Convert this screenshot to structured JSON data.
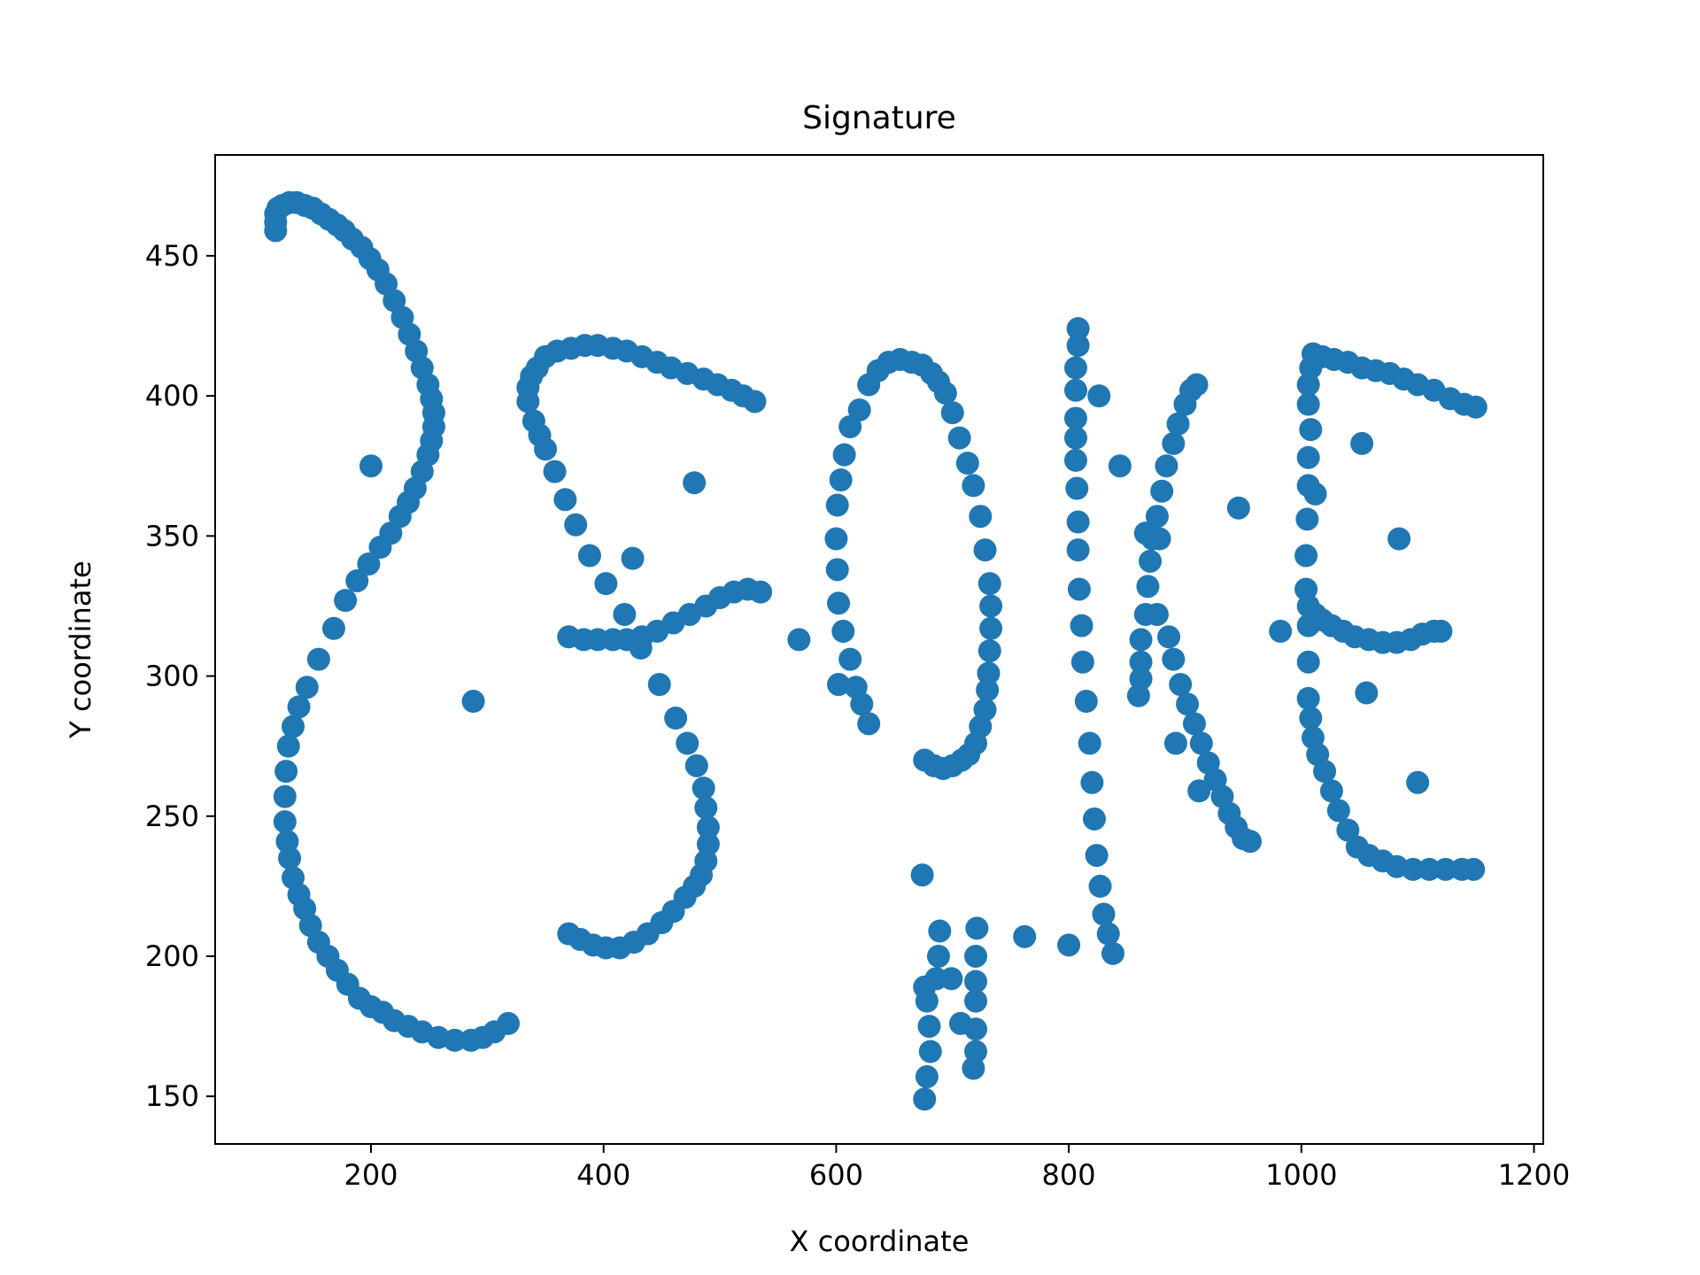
{
  "chart_data": {
    "type": "scatter",
    "title": "Signature",
    "xlabel": "X coordinate",
    "ylabel": "Y coordinate",
    "xlim": [
      66,
      1208
    ],
    "ylim": [
      133,
      486
    ],
    "x_ticks": [
      200,
      400,
      600,
      800,
      1000,
      1200
    ],
    "y_ticks": [
      150,
      200,
      250,
      300,
      350,
      400,
      450
    ],
    "grid": false,
    "marker_color": "#1f77b4",
    "series": [
      {
        "points": [
          [
            118,
            459
          ],
          [
            118,
            462
          ],
          [
            118,
            465
          ],
          [
            120,
            467
          ],
          [
            124,
            468
          ],
          [
            130,
            469
          ],
          [
            136,
            469
          ],
          [
            143,
            468
          ],
          [
            150,
            467
          ],
          [
            157,
            465
          ],
          [
            164,
            463
          ],
          [
            171,
            461
          ],
          [
            177,
            459
          ],
          [
            184,
            456
          ],
          [
            192,
            453
          ],
          [
            199,
            449
          ],
          [
            206,
            445
          ],
          [
            213,
            440
          ],
          [
            220,
            434
          ],
          [
            227,
            428
          ],
          [
            233,
            422
          ],
          [
            239,
            416
          ],
          [
            244,
            410
          ],
          [
            249,
            404
          ],
          [
            252,
            399
          ],
          [
            254,
            394
          ],
          [
            254,
            389
          ],
          [
            252,
            384
          ],
          [
            249,
            379
          ],
          [
            244,
            373
          ],
          [
            238,
            367
          ],
          [
            232,
            362
          ],
          [
            225,
            357
          ],
          [
            217,
            351
          ],
          [
            208,
            346
          ],
          [
            198,
            340
          ],
          [
            188,
            334
          ],
          [
            178,
            327
          ],
          [
            168,
            317
          ],
          [
            155,
            306
          ],
          [
            145,
            296
          ],
          [
            138,
            289
          ],
          [
            133,
            282
          ],
          [
            129,
            275
          ],
          [
            127,
            266
          ],
          [
            126,
            257
          ],
          [
            126,
            248
          ],
          [
            128,
            241
          ],
          [
            130,
            235
          ],
          [
            133,
            228
          ],
          [
            138,
            222
          ],
          [
            143,
            217
          ],
          [
            148,
            211
          ],
          [
            155,
            205
          ],
          [
            163,
            200
          ],
          [
            171,
            195
          ],
          [
            180,
            190
          ],
          [
            190,
            185
          ],
          [
            200,
            182
          ],
          [
            210,
            180
          ],
          [
            220,
            177
          ],
          [
            232,
            175
          ],
          [
            244,
            173
          ],
          [
            258,
            171
          ],
          [
            272,
            170
          ],
          [
            286,
            170
          ],
          [
            296,
            171
          ],
          [
            306,
            173
          ],
          [
            318,
            176
          ],
          [
            200,
            375
          ],
          [
            288,
            291
          ],
          [
            335,
            398
          ],
          [
            335,
            403
          ],
          [
            338,
            407
          ],
          [
            343,
            410
          ],
          [
            350,
            414
          ],
          [
            360,
            416
          ],
          [
            372,
            417
          ],
          [
            384,
            418
          ],
          [
            395,
            418
          ],
          [
            408,
            417
          ],
          [
            420,
            416
          ],
          [
            433,
            414
          ],
          [
            446,
            412
          ],
          [
            458,
            410
          ],
          [
            472,
            408
          ],
          [
            486,
            406
          ],
          [
            498,
            404
          ],
          [
            510,
            402
          ],
          [
            520,
            400
          ],
          [
            530,
            398
          ],
          [
            340,
            391
          ],
          [
            345,
            386
          ],
          [
            350,
            381
          ],
          [
            358,
            373
          ],
          [
            367,
            363
          ],
          [
            376,
            354
          ],
          [
            388,
            343
          ],
          [
            402,
            333
          ],
          [
            418,
            322
          ],
          [
            432,
            310
          ],
          [
            448,
            297
          ],
          [
            462,
            285
          ],
          [
            472,
            276
          ],
          [
            480,
            268
          ],
          [
            486,
            260
          ],
          [
            488,
            253
          ],
          [
            490,
            246
          ],
          [
            490,
            240
          ],
          [
            488,
            234
          ],
          [
            484,
            229
          ],
          [
            478,
            225
          ],
          [
            470,
            221
          ],
          [
            460,
            216
          ],
          [
            450,
            212
          ],
          [
            438,
            208
          ],
          [
            426,
            205
          ],
          [
            414,
            203
          ],
          [
            402,
            203
          ],
          [
            391,
            204
          ],
          [
            380,
            206
          ],
          [
            370,
            208
          ],
          [
            478,
            369
          ],
          [
            425,
            342
          ],
          [
            370,
            314
          ],
          [
            383,
            313
          ],
          [
            395,
            313
          ],
          [
            408,
            313
          ],
          [
            420,
            313
          ],
          [
            433,
            314
          ],
          [
            446,
            316
          ],
          [
            460,
            319
          ],
          [
            474,
            322
          ],
          [
            488,
            325
          ],
          [
            500,
            328
          ],
          [
            512,
            330
          ],
          [
            524,
            331
          ],
          [
            535,
            330
          ],
          [
            568,
            313
          ],
          [
            628,
            404
          ],
          [
            636,
            409
          ],
          [
            645,
            412
          ],
          [
            655,
            413
          ],
          [
            665,
            412
          ],
          [
            674,
            411
          ],
          [
            682,
            408
          ],
          [
            688,
            405
          ],
          [
            694,
            401
          ],
          [
            700,
            394
          ],
          [
            706,
            385
          ],
          [
            713,
            376
          ],
          [
            718,
            368
          ],
          [
            724,
            357
          ],
          [
            728,
            345
          ],
          [
            732,
            333
          ],
          [
            733,
            325
          ],
          [
            733,
            317
          ],
          [
            732,
            309
          ],
          [
            731,
            301
          ],
          [
            730,
            295
          ],
          [
            728,
            288
          ],
          [
            724,
            282
          ],
          [
            720,
            276
          ],
          [
            714,
            272
          ],
          [
            708,
            270
          ],
          [
            700,
            268
          ],
          [
            692,
            267
          ],
          [
            684,
            268
          ],
          [
            676,
            270
          ],
          [
            620,
            395
          ],
          [
            612,
            389
          ],
          [
            607,
            379
          ],
          [
            604,
            370
          ],
          [
            601,
            361
          ],
          [
            600,
            349
          ],
          [
            601,
            338
          ],
          [
            602,
            326
          ],
          [
            606,
            316
          ],
          [
            612,
            306
          ],
          [
            617,
            296
          ],
          [
            622,
            290
          ],
          [
            628,
            283
          ],
          [
            602,
            297
          ],
          [
            674,
            229
          ],
          [
            676,
            189
          ],
          [
            678,
            184
          ],
          [
            680,
            175
          ],
          [
            681,
            166
          ],
          [
            678,
            157
          ],
          [
            676,
            149
          ],
          [
            686,
            192
          ],
          [
            688,
            200
          ],
          [
            689,
            209
          ],
          [
            699,
            192
          ],
          [
            707,
            176
          ],
          [
            718,
            160
          ],
          [
            720,
            166
          ],
          [
            720,
            174
          ],
          [
            720,
            184
          ],
          [
            720,
            191
          ],
          [
            720,
            200
          ],
          [
            721,
            210
          ],
          [
            762,
            207
          ],
          [
            800,
            204
          ],
          [
            808,
            424
          ],
          [
            808,
            418
          ],
          [
            806,
            410
          ],
          [
            806,
            402
          ],
          [
            806,
            392
          ],
          [
            806,
            385
          ],
          [
            806,
            377
          ],
          [
            807,
            367
          ],
          [
            808,
            355
          ],
          [
            808,
            345
          ],
          [
            809,
            331
          ],
          [
            811,
            318
          ],
          [
            812,
            305
          ],
          [
            815,
            291
          ],
          [
            818,
            276
          ],
          [
            820,
            262
          ],
          [
            822,
            249
          ],
          [
            824,
            236
          ],
          [
            827,
            225
          ],
          [
            830,
            215
          ],
          [
            834,
            208
          ],
          [
            838,
            201
          ],
          [
            826,
            400
          ],
          [
            844,
            375
          ],
          [
            860,
            293
          ],
          [
            862,
            299
          ],
          [
            862,
            305
          ],
          [
            862,
            313
          ],
          [
            866,
            322
          ],
          [
            868,
            332
          ],
          [
            870,
            341
          ],
          [
            872,
            349
          ],
          [
            876,
            357
          ],
          [
            880,
            366
          ],
          [
            884,
            375
          ],
          [
            890,
            383
          ],
          [
            894,
            390
          ],
          [
            900,
            397
          ],
          [
            905,
            402
          ],
          [
            910,
            404
          ],
          [
            878,
            349
          ],
          [
            866,
            351
          ],
          [
            876,
            322
          ],
          [
            886,
            314
          ],
          [
            890,
            306
          ],
          [
            896,
            297
          ],
          [
            902,
            290
          ],
          [
            908,
            283
          ],
          [
            914,
            276
          ],
          [
            920,
            269
          ],
          [
            926,
            263
          ],
          [
            932,
            257
          ],
          [
            938,
            251
          ],
          [
            944,
            246
          ],
          [
            950,
            242
          ],
          [
            956,
            241
          ],
          [
            912,
            259
          ],
          [
            892,
            276
          ],
          [
            946,
            360
          ],
          [
            1010,
            415
          ],
          [
            1018,
            414
          ],
          [
            1028,
            413
          ],
          [
            1040,
            412
          ],
          [
            1052,
            410
          ],
          [
            1064,
            409
          ],
          [
            1076,
            408
          ],
          [
            1088,
            406
          ],
          [
            1100,
            404
          ],
          [
            1114,
            402
          ],
          [
            1128,
            399
          ],
          [
            1140,
            397
          ],
          [
            1150,
            396
          ],
          [
            1008,
            410
          ],
          [
            1006,
            404
          ],
          [
            1006,
            397
          ],
          [
            1008,
            388
          ],
          [
            1006,
            378
          ],
          [
            1006,
            368
          ],
          [
            1005,
            356
          ],
          [
            1004,
            343
          ],
          [
            1004,
            331
          ],
          [
            1006,
            325
          ],
          [
            1012,
            322
          ],
          [
            1018,
            320
          ],
          [
            1026,
            318
          ],
          [
            1036,
            316
          ],
          [
            1046,
            314
          ],
          [
            1058,
            313
          ],
          [
            1070,
            312
          ],
          [
            1082,
            312
          ],
          [
            1094,
            313
          ],
          [
            1104,
            315
          ],
          [
            1114,
            316
          ],
          [
            1120,
            316
          ],
          [
            1006,
            318
          ],
          [
            1006,
            305
          ],
          [
            1006,
            292
          ],
          [
            1008,
            285
          ],
          [
            1010,
            278
          ],
          [
            1014,
            272
          ],
          [
            1020,
            266
          ],
          [
            1026,
            259
          ],
          [
            1032,
            252
          ],
          [
            1040,
            245
          ],
          [
            1048,
            239
          ],
          [
            1058,
            236
          ],
          [
            1070,
            234
          ],
          [
            1082,
            232
          ],
          [
            1096,
            231
          ],
          [
            1110,
            231
          ],
          [
            1124,
            231
          ],
          [
            1138,
            231
          ],
          [
            1148,
            231
          ],
          [
            1012,
            365
          ],
          [
            1052,
            383
          ],
          [
            1084,
            349
          ],
          [
            1056,
            294
          ],
          [
            1100,
            262
          ],
          [
            982,
            316
          ]
        ]
      }
    ]
  }
}
